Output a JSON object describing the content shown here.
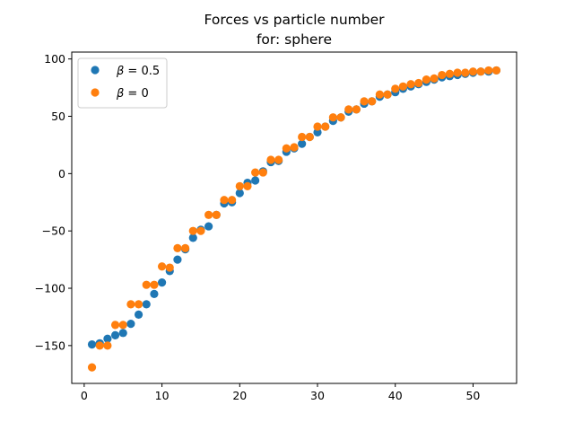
{
  "chart_data": {
    "type": "scatter",
    "title": "Forces vs particle number",
    "subtitle": "for: sphere",
    "xlabel": "",
    "ylabel": "",
    "xlim": [
      -1.6,
      55.6
    ],
    "ylim": [
      -183,
      106
    ],
    "xticks": [
      0,
      10,
      20,
      30,
      40,
      50
    ],
    "yticks": [
      -150,
      -100,
      -50,
      0,
      50,
      100
    ],
    "xtick_labels": [
      "0",
      "10",
      "20",
      "30",
      "40",
      "50"
    ],
    "ytick_labels": [
      "−150",
      "−100",
      "−50",
      "0",
      "50",
      "100"
    ],
    "grid": false,
    "legend_position": "top-left",
    "series": [
      {
        "name_symbol": "β",
        "name_value": " = 0.5",
        "color": "#1f77b4",
        "x": [
          1,
          2,
          3,
          4,
          5,
          6,
          7,
          8,
          9,
          10,
          11,
          12,
          13,
          14,
          15,
          16,
          17,
          18,
          19,
          20,
          21,
          22,
          23,
          24,
          25,
          26,
          27,
          28,
          29,
          30,
          31,
          32,
          33,
          34,
          35,
          36,
          37,
          38,
          39,
          40,
          41,
          42,
          43,
          44,
          45,
          46,
          47,
          48,
          49,
          50,
          51,
          52,
          53
        ],
        "y": [
          -149,
          -148,
          -144,
          -141,
          -139,
          -131,
          -123,
          -114,
          -105,
          -95,
          -85,
          -75,
          -66,
          -56,
          -49,
          -46,
          -36,
          -26,
          -25,
          -17,
          -8,
          -6,
          2,
          10,
          11,
          19,
          22,
          26,
          32,
          36,
          41,
          46,
          49,
          54,
          56,
          61,
          63,
          67,
          69,
          71,
          74,
          76,
          78,
          80,
          82,
          84,
          85,
          86,
          87,
          88,
          89,
          89,
          90
        ]
      },
      {
        "name_symbol": "β",
        "name_value": " = 0",
        "color": "#ff7f0e",
        "x": [
          1,
          2,
          3,
          4,
          5,
          6,
          7,
          8,
          9,
          10,
          11,
          12,
          13,
          14,
          15,
          16,
          17,
          18,
          19,
          20,
          21,
          22,
          23,
          24,
          25,
          26,
          27,
          28,
          29,
          30,
          31,
          32,
          33,
          34,
          35,
          36,
          37,
          38,
          39,
          40,
          41,
          42,
          43,
          44,
          45,
          46,
          47,
          48,
          49,
          50,
          51,
          52,
          53
        ],
        "y": [
          -169,
          -150,
          -150,
          -132,
          -132,
          -114,
          -114,
          -97,
          -97,
          -81,
          -82,
          -65,
          -65,
          -50,
          -50,
          -36,
          -36,
          -23,
          -23,
          -11,
          -11,
          1,
          1,
          12,
          12,
          22,
          23,
          32,
          32,
          41,
          41,
          49,
          49,
          56,
          56,
          63,
          63,
          69,
          69,
          74,
          76,
          78,
          79,
          82,
          83,
          86,
          87,
          88,
          88,
          89,
          89,
          90,
          90
        ]
      }
    ]
  }
}
